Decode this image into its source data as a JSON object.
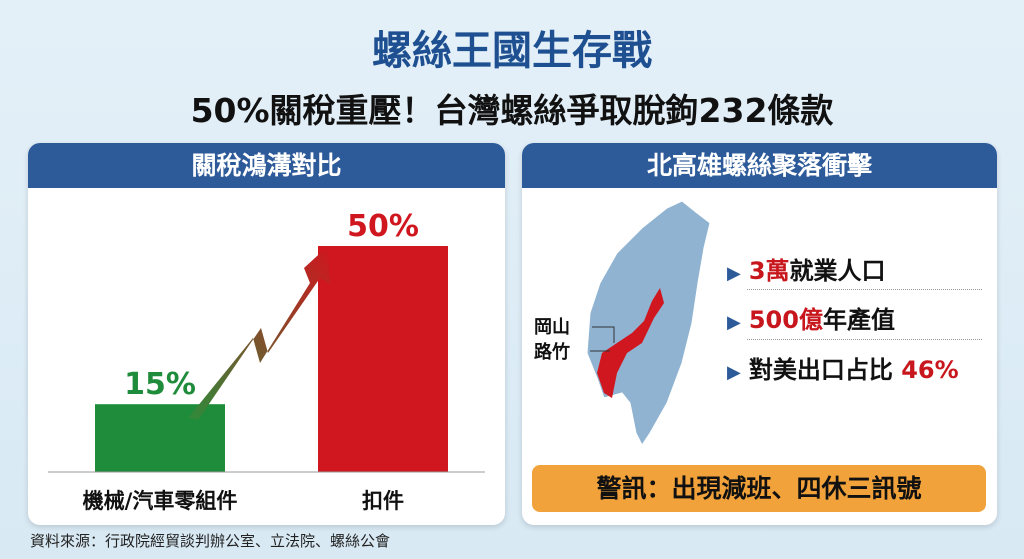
{
  "title": "螺絲王國生存戰",
  "subtitle": "50%關稅重壓！台灣螺絲爭取脫鉤232條款",
  "left_panel": {
    "header": "關稅鴻溝對比"
  },
  "right_panel": {
    "header": "北高雄螺絲聚落衝擊",
    "map_labels": [
      "岡山",
      "路竹"
    ],
    "stats": [
      {
        "highlight": "3萬",
        "text": "就業人口"
      },
      {
        "highlight": "500億",
        "text": "年產值"
      },
      {
        "text": "對美出口占比 ",
        "highlight": "46%"
      }
    ],
    "warning": "警訊：出現減班、四休三訊號"
  },
  "source": "資料來源：行政院經貿談判辦公室、立法院、螺絲公會",
  "colors": {
    "title": "#1d4f91",
    "header": "#2d5b9a",
    "green": "#1e8c3a",
    "red": "#d0161e",
    "map": "#8fb3d1",
    "warning": "#f2a23a"
  },
  "chart_data": {
    "type": "bar",
    "categories": [
      "機械/汽車零組件",
      "扣件"
    ],
    "values": [
      15,
      50
    ],
    "data_labels": [
      "15%",
      "50%"
    ],
    "colors": [
      "#1e8c3a",
      "#d0161e"
    ],
    "ylim": [
      0,
      50
    ],
    "grid": false,
    "annotation": "arrow-up-trend"
  }
}
